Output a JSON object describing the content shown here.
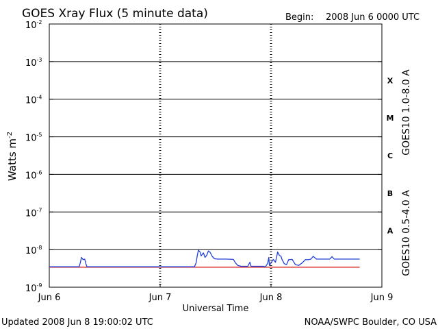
{
  "header": {
    "title": "GOES Xray Flux (5 minute data)",
    "begin_label": "Begin:",
    "begin_value": "2008 Jun 6 0000 UTC"
  },
  "footer": {
    "updated": "Updated 2008 Jun  8 19:00:02 UTC",
    "source": "NOAA/SWPC Boulder, CO USA"
  },
  "chart_data": {
    "type": "line",
    "title": "GOES Xray Flux (5 minute data)",
    "xlabel": "Universal Time",
    "ylabel": "Watts m",
    "ylabel_superscript": "-2",
    "x_unit": "days since 2008 Jun 6 0000 UTC",
    "x_range": [
      0,
      3
    ],
    "x_ticks": [
      {
        "x": 0,
        "label": "Jun 6"
      },
      {
        "x": 1,
        "label": "Jun 7"
      },
      {
        "x": 2,
        "label": "Jun 8"
      },
      {
        "x": 3,
        "label": "Jun 9"
      }
    ],
    "y_scale": "log",
    "y_range": [
      1e-09,
      0.01
    ],
    "y_ticks": [
      {
        "exp": -9,
        "label": "10",
        "sup": "-9"
      },
      {
        "exp": -8,
        "label": "10",
        "sup": "-8"
      },
      {
        "exp": -7,
        "label": "10",
        "sup": "-7"
      },
      {
        "exp": -6,
        "label": "10",
        "sup": "-6"
      },
      {
        "exp": -5,
        "label": "10",
        "sup": "-5"
      },
      {
        "exp": -4,
        "label": "10",
        "sup": "-4"
      },
      {
        "exp": -3,
        "label": "10",
        "sup": "-3"
      },
      {
        "exp": -2,
        "label": "10",
        "sup": "-2"
      }
    ],
    "flare_classes": [
      {
        "label": "A",
        "exp": -8
      },
      {
        "label": "B",
        "exp": -7
      },
      {
        "label": "C",
        "exp": -6
      },
      {
        "label": "M",
        "exp": -5
      },
      {
        "label": "X",
        "exp": -4
      }
    ],
    "grid": "horizontal lines at each decade above 1e-8; dashed vertical day lines",
    "series": [
      {
        "name": "GOES10 1.0-8.0 A",
        "color": "#d42020",
        "points": [
          [
            0,
            3.4e-09
          ],
          [
            2.8,
            3.4e-09
          ]
        ]
      },
      {
        "name": "GOES10 0.5-4.0 A",
        "color": "#1f3fd8",
        "points": [
          [
            0,
            3.5e-09
          ],
          [
            0.27,
            3.5e-09
          ],
          [
            0.28,
            4.5e-09
          ],
          [
            0.29,
            6.2e-09
          ],
          [
            0.305,
            5.4e-09
          ],
          [
            0.32,
            5.6e-09
          ],
          [
            0.33,
            4.2e-09
          ],
          [
            0.34,
            3.5e-09
          ],
          [
            1.31,
            3.5e-09
          ],
          [
            1.325,
            4.5e-09
          ],
          [
            1.335,
            7e-09
          ],
          [
            1.345,
            9.6e-09
          ],
          [
            1.36,
            8.6e-09
          ],
          [
            1.37,
            6.8e-09
          ],
          [
            1.39,
            8.2e-09
          ],
          [
            1.405,
            6.2e-09
          ],
          [
            1.42,
            7e-09
          ],
          [
            1.435,
            9.2e-09
          ],
          [
            1.45,
            8.5e-09
          ],
          [
            1.47,
            6.6e-09
          ],
          [
            1.49,
            5.7e-09
          ],
          [
            1.52,
            5.6e-09
          ],
          [
            1.56,
            5.6e-09
          ],
          [
            1.6,
            5.6e-09
          ],
          [
            1.66,
            5.5e-09
          ],
          [
            1.68,
            4.4e-09
          ],
          [
            1.7,
            3.8e-09
          ],
          [
            1.73,
            3.6e-09
          ],
          [
            1.79,
            3.6e-09
          ],
          [
            1.81,
            4.6e-09
          ],
          [
            1.82,
            3.6e-09
          ],
          [
            1.88,
            3.6e-09
          ],
          [
            1.93,
            3.6e-09
          ],
          [
            1.95,
            3.5e-09
          ],
          [
            1.97,
            4.3e-09
          ],
          [
            1.98,
            6.2e-09
          ],
          [
            1.985,
            3.8e-09
          ],
          [
            2.0,
            4.4e-09
          ],
          [
            2.02,
            5.5e-09
          ],
          [
            2.04,
            4.6e-09
          ],
          [
            2.06,
            8.6e-09
          ],
          [
            2.075,
            7e-09
          ],
          [
            2.09,
            6.6e-09
          ],
          [
            2.1,
            5.4e-09
          ],
          [
            2.12,
            4.2e-09
          ],
          [
            2.14,
            4e-09
          ],
          [
            2.16,
            5.4e-09
          ],
          [
            2.19,
            5.5e-09
          ],
          [
            2.22,
            4e-09
          ],
          [
            2.25,
            3.8e-09
          ],
          [
            2.28,
            4.4e-09
          ],
          [
            2.31,
            5.4e-09
          ],
          [
            2.34,
            5.4e-09
          ],
          [
            2.36,
            5.6e-09
          ],
          [
            2.38,
            6.6e-09
          ],
          [
            2.41,
            5.6e-09
          ],
          [
            2.47,
            5.6e-09
          ],
          [
            2.53,
            5.6e-09
          ],
          [
            2.55,
            6.5e-09
          ],
          [
            2.57,
            5.6e-09
          ],
          [
            2.8,
            5.6e-09
          ]
        ]
      }
    ]
  }
}
